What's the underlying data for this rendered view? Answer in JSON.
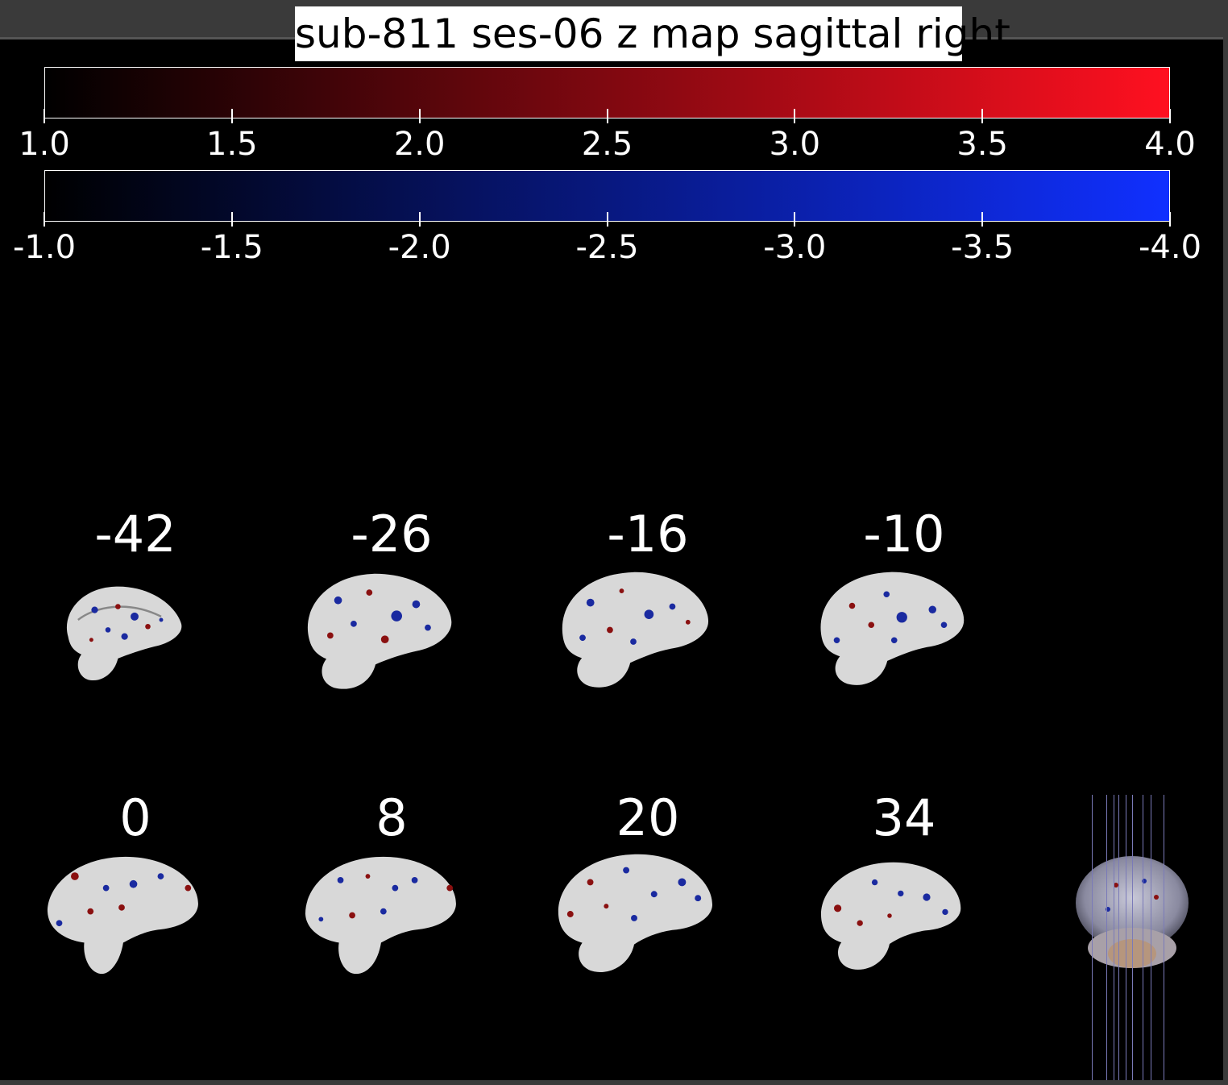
{
  "title": "sub-811 ses-06 z map sagittal right",
  "colorbars": {
    "positive": {
      "colors": [
        "#000000",
        "#ff1020"
      ],
      "ticks": [
        "1.0",
        "1.5",
        "2.0",
        "2.5",
        "3.0",
        "3.5",
        "4.0"
      ]
    },
    "negative": {
      "colors": [
        "#000000",
        "#1030ff"
      ],
      "ticks": [
        "-1.0",
        "-1.5",
        "-2.0",
        "-2.5",
        "-3.0",
        "-3.5",
        "-4.0"
      ]
    }
  },
  "slices": {
    "row1": [
      "-42",
      "-26",
      "-16",
      "-10"
    ],
    "row2": [
      "0",
      "8",
      "20",
      "34"
    ]
  },
  "overview_icon": "brain-3d-overview-icon"
}
